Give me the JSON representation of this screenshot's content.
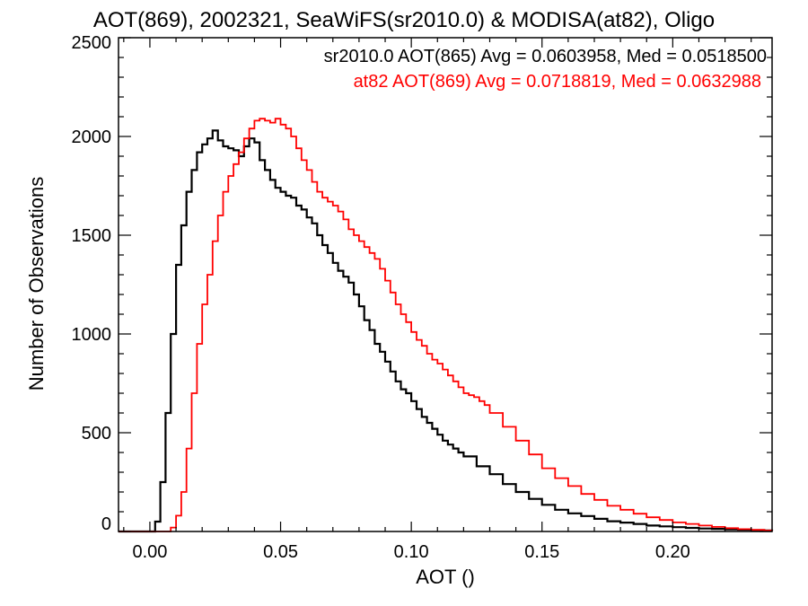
{
  "chart_data": {
    "type": "line",
    "title": "AOT(869), 2002321, SeaWiFS(sr2010.0) & MODISA(at82), Oligo",
    "xlabel": "AOT ()",
    "ylabel": "Number of Observations",
    "xlim": [
      -0.012,
      0.238
    ],
    "ylim": [
      0,
      2500
    ],
    "x_ticks": [
      0.0,
      0.05,
      0.1,
      0.15,
      0.2
    ],
    "x_tick_labels": [
      "0.00",
      "0.05",
      "0.10",
      "0.15",
      "0.20"
    ],
    "y_ticks": [
      0,
      500,
      1000,
      1500,
      2000,
      2500
    ],
    "y_tick_labels": [
      "0",
      "500",
      "1000",
      "1500",
      "2000",
      "2500"
    ],
    "grid": false,
    "style": "step-histogram",
    "series": [
      {
        "name": "sr2010.0 AOT(865) Avg = 0.0603958, Med = 0.0518500",
        "color": "#000000",
        "x": [
          -0.012,
          0.002,
          0.004,
          0.006,
          0.008,
          0.01,
          0.012,
          0.014,
          0.016,
          0.018,
          0.02,
          0.022,
          0.024,
          0.026,
          0.028,
          0.03,
          0.032,
          0.034,
          0.036,
          0.038,
          0.04,
          0.042,
          0.044,
          0.046,
          0.048,
          0.05,
          0.052,
          0.054,
          0.056,
          0.058,
          0.06,
          0.062,
          0.064,
          0.066,
          0.068,
          0.07,
          0.072,
          0.074,
          0.076,
          0.078,
          0.08,
          0.082,
          0.084,
          0.086,
          0.088,
          0.09,
          0.092,
          0.094,
          0.096,
          0.098,
          0.1,
          0.102,
          0.104,
          0.106,
          0.108,
          0.11,
          0.112,
          0.114,
          0.116,
          0.118,
          0.12,
          0.125,
          0.13,
          0.135,
          0.14,
          0.145,
          0.15,
          0.155,
          0.16,
          0.165,
          0.17,
          0.175,
          0.18,
          0.185,
          0.19,
          0.195,
          0.2,
          0.205,
          0.21,
          0.215,
          0.22,
          0.225,
          0.23,
          0.235,
          0.238
        ],
        "y": [
          0,
          50,
          250,
          600,
          1000,
          1350,
          1550,
          1720,
          1830,
          1920,
          1960,
          1990,
          2030,
          1980,
          1950,
          1940,
          1930,
          1900,
          1950,
          1990,
          1970,
          1880,
          1830,
          1780,
          1740,
          1720,
          1700,
          1690,
          1650,
          1630,
          1590,
          1560,
          1500,
          1450,
          1410,
          1360,
          1320,
          1290,
          1260,
          1200,
          1140,
          1070,
          1020,
          950,
          910,
          860,
          810,
          760,
          720,
          700,
          660,
          620,
          580,
          550,
          520,
          490,
          460,
          440,
          420,
          400,
          380,
          330,
          290,
          240,
          200,
          165,
          135,
          110,
          92,
          78,
          64,
          52,
          45,
          38,
          30,
          26,
          22,
          18,
          15,
          13,
          11,
          9,
          7,
          5,
          3
        ]
      },
      {
        "name": "at82 AOT(869) Avg = 0.0718819, Med = 0.0632988",
        "color": "#ff0000",
        "x": [
          -0.012,
          0.008,
          0.01,
          0.012,
          0.014,
          0.016,
          0.018,
          0.02,
          0.022,
          0.024,
          0.026,
          0.028,
          0.03,
          0.032,
          0.034,
          0.036,
          0.038,
          0.04,
          0.042,
          0.044,
          0.046,
          0.048,
          0.05,
          0.052,
          0.054,
          0.056,
          0.058,
          0.06,
          0.062,
          0.064,
          0.066,
          0.068,
          0.07,
          0.072,
          0.074,
          0.076,
          0.078,
          0.08,
          0.082,
          0.084,
          0.086,
          0.088,
          0.09,
          0.092,
          0.094,
          0.096,
          0.098,
          0.1,
          0.102,
          0.104,
          0.106,
          0.108,
          0.11,
          0.112,
          0.114,
          0.116,
          0.118,
          0.12,
          0.122,
          0.124,
          0.126,
          0.128,
          0.13,
          0.135,
          0.14,
          0.145,
          0.15,
          0.155,
          0.16,
          0.165,
          0.17,
          0.175,
          0.18,
          0.185,
          0.19,
          0.195,
          0.2,
          0.205,
          0.21,
          0.215,
          0.22,
          0.225,
          0.23,
          0.235,
          0.238
        ],
        "y": [
          0,
          20,
          80,
          200,
          420,
          700,
          950,
          1150,
          1300,
          1470,
          1600,
          1720,
          1800,
          1860,
          1920,
          1990,
          2040,
          2080,
          2090,
          2080,
          2070,
          2090,
          2060,
          2040,
          2000,
          1940,
          1880,
          1830,
          1770,
          1720,
          1690,
          1670,
          1650,
          1620,
          1580,
          1530,
          1500,
          1470,
          1440,
          1410,
          1380,
          1330,
          1270,
          1210,
          1150,
          1100,
          1060,
          1010,
          970,
          940,
          900,
          870,
          850,
          820,
          790,
          760,
          730,
          700,
          690,
          680,
          660,
          640,
          600,
          530,
          460,
          390,
          320,
          270,
          230,
          190,
          160,
          130,
          110,
          90,
          72,
          58,
          46,
          38,
          30,
          23,
          17,
          12,
          8,
          5,
          3
        ]
      }
    ]
  }
}
